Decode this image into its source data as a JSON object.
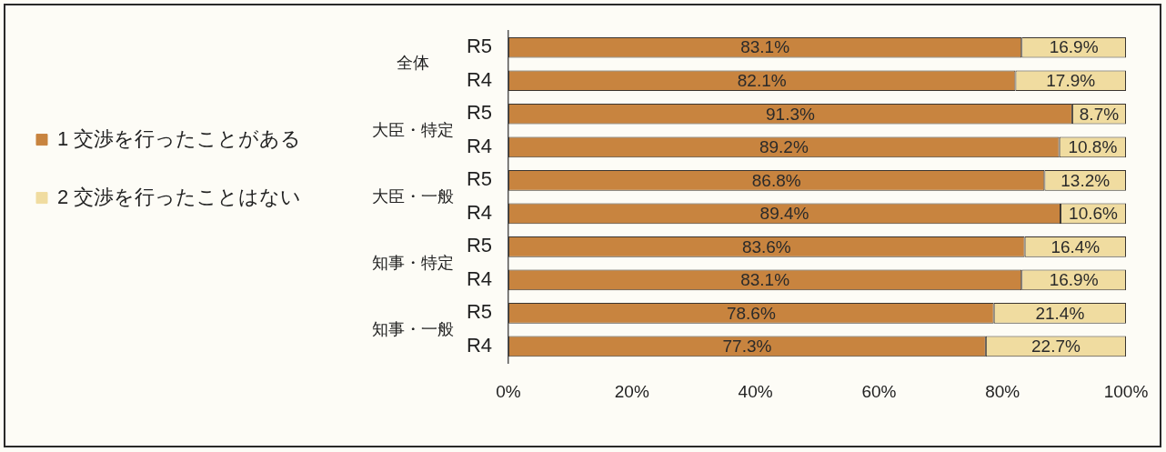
{
  "chart_data": {
    "type": "bar",
    "orientation": "horizontal",
    "stacked": true,
    "categories": [
      "R5",
      "R4",
      "R5",
      "R4",
      "R5",
      "R4",
      "R5",
      "R4",
      "R5",
      "R4"
    ],
    "series": [
      {
        "name": "1 交渉を行ったことがある",
        "color": "#c8843f",
        "values": [
          83.1,
          82.1,
          91.3,
          89.2,
          86.8,
          89.4,
          83.6,
          83.1,
          78.6,
          77.3
        ],
        "value_labels": [
          "83.1%",
          "82.1%",
          "91.3%",
          "89.2%",
          "86.8%",
          "89.4%",
          "83.6%",
          "83.1%",
          "78.6%",
          "77.3%"
        ]
      },
      {
        "name": "2 交渉を行ったことはない",
        "color": "#f0dca0",
        "values": [
          16.9,
          17.9,
          8.7,
          10.8,
          13.2,
          10.6,
          16.4,
          16.9,
          21.4,
          22.7
        ],
        "value_labels": [
          "16.9%",
          "17.9%",
          "8.7%",
          "10.8%",
          "13.2%",
          "10.6%",
          "16.4%",
          "16.9%",
          "21.4%",
          "22.7%"
        ]
      }
    ],
    "xlim": [
      0,
      100
    ],
    "xticks": [
      {
        "value": 0,
        "label": "0%"
      },
      {
        "value": 20,
        "label": "20%"
      },
      {
        "value": 40,
        "label": "40%"
      },
      {
        "value": 60,
        "label": "60%"
      },
      {
        "value": 80,
        "label": "80%"
      },
      {
        "value": 100,
        "label": "100%"
      }
    ],
    "grid": false,
    "legend": "left",
    "annotations": [
      "全体",
      "大臣・特定",
      "大臣・一般",
      "知事・特定",
      "知事・一般"
    ]
  }
}
